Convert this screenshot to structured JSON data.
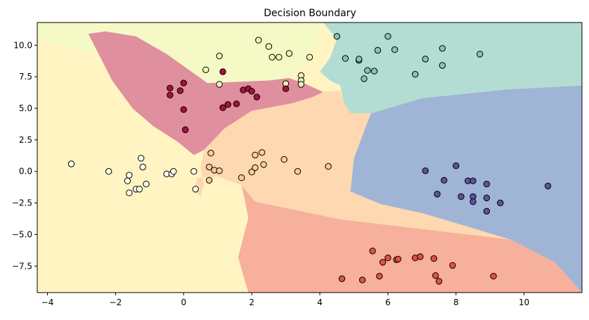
{
  "chart_data": {
    "type": "scatter",
    "title": "Decision Boundary",
    "xlabel": "",
    "ylabel": "",
    "xlim": [
      -4.3,
      11.7
    ],
    "ylim": [
      -9.6,
      11.8
    ],
    "xticks": [
      -4,
      -2,
      0,
      2,
      4,
      6,
      8,
      10
    ],
    "yticks": [
      10.0,
      7.5,
      5.0,
      2.5,
      0.0,
      -2.5,
      -5.0,
      -7.5
    ],
    "ytick_labels": [
      "10.0",
      "7.5",
      "5.0",
      "2.5",
      "0.0",
      "−2.5",
      "−5.0",
      "−7.5"
    ],
    "xtick_labels": [
      "−4",
      "−2",
      "0",
      "2",
      "4",
      "6",
      "8",
      "10"
    ],
    "grid": false,
    "legend": false,
    "regions": [
      {
        "class": 0,
        "color": "#fff4c2",
        "polygon": [
          [
            -4.3,
            11.8
          ],
          [
            11.7,
            11.8
          ],
          [
            11.7,
            -9.6
          ],
          [
            -4.3,
            -9.6
          ]
        ]
      },
      {
        "class": 1,
        "color": "#f5f9c6",
        "polygon": [
          [
            -4.3,
            11.8
          ],
          [
            4.1,
            11.8
          ],
          [
            4.0,
            10.5
          ],
          [
            3.6,
            8.7
          ],
          [
            3.1,
            7.4
          ],
          [
            2.5,
            7.2
          ],
          [
            0.5,
            7.0
          ],
          [
            -3.2,
            9.7
          ],
          [
            -4.3,
            10.5
          ]
        ]
      },
      {
        "class": 2,
        "color": "#b3ddd3",
        "polygon": [
          [
            4.1,
            11.8
          ],
          [
            11.7,
            11.8
          ],
          [
            11.7,
            6.8
          ],
          [
            9.5,
            6.5
          ],
          [
            7.0,
            5.8
          ],
          [
            5.5,
            4.6
          ],
          [
            4.9,
            4.6
          ],
          [
            4.7,
            5.5
          ],
          [
            4.6,
            6.8
          ],
          [
            4.3,
            7.2
          ],
          [
            4.0,
            7.9
          ],
          [
            4.3,
            9.0
          ],
          [
            4.5,
            10.5
          ]
        ]
      },
      {
        "class": 3,
        "color": "#e08f9e",
        "polygon": [
          [
            -2.8,
            10.9
          ],
          [
            -2.3,
            11.1
          ],
          [
            -1.4,
            10.7
          ],
          [
            -0.5,
            9.3
          ],
          [
            0.7,
            7.0
          ],
          [
            2.5,
            7.2
          ],
          [
            3.1,
            7.4
          ],
          [
            3.6,
            6.9
          ],
          [
            4.1,
            6.3
          ],
          [
            3.8,
            5.9
          ],
          [
            3.2,
            5.4
          ],
          [
            2.8,
            5.2
          ],
          [
            2.0,
            4.8
          ],
          [
            1.2,
            3.4
          ],
          [
            0.6,
            1.7
          ],
          [
            0.3,
            1.3
          ],
          [
            -0.2,
            2.4
          ],
          [
            -0.9,
            3.6
          ],
          [
            -1.5,
            5.0
          ],
          [
            -2.1,
            7.2
          ]
        ]
      },
      {
        "class": 4,
        "color": "#fed8b0",
        "polygon": [
          [
            0.6,
            1.7
          ],
          [
            1.2,
            3.4
          ],
          [
            2.0,
            4.8
          ],
          [
            2.8,
            5.2
          ],
          [
            3.2,
            5.4
          ],
          [
            3.8,
            5.9
          ],
          [
            4.1,
            6.3
          ],
          [
            4.6,
            6.4
          ],
          [
            4.7,
            5.5
          ],
          [
            4.9,
            4.6
          ],
          [
            5.5,
            4.6
          ],
          [
            5.3,
            3.2
          ],
          [
            5.0,
            1.0
          ],
          [
            4.9,
            -1.6
          ],
          [
            5.8,
            -2.6
          ],
          [
            7.0,
            -3.3
          ],
          [
            8.5,
            -4.5
          ],
          [
            9.6,
            -5.4
          ],
          [
            4.6,
            -3.8
          ],
          [
            2.1,
            -2.4
          ],
          [
            1.7,
            -1.1
          ],
          [
            1.0,
            -0.4
          ],
          [
            0.4,
            -0.5
          ],
          [
            0.3,
            -1.5
          ],
          [
            0.5,
            -2.0
          ],
          [
            0.6,
            -1.0
          ],
          [
            0.5,
            0.3
          ]
        ]
      },
      {
        "class": 5,
        "color": "#a0b4d6",
        "polygon": [
          [
            11.7,
            6.8
          ],
          [
            9.5,
            6.5
          ],
          [
            7.0,
            5.8
          ],
          [
            5.5,
            4.6
          ],
          [
            5.3,
            3.2
          ],
          [
            5.0,
            1.0
          ],
          [
            4.9,
            -1.6
          ],
          [
            5.8,
            -2.6
          ],
          [
            7.0,
            -3.3
          ],
          [
            8.5,
            -4.5
          ],
          [
            9.6,
            -5.4
          ],
          [
            10.9,
            -7.2
          ],
          [
            11.7,
            -9.6
          ]
        ]
      },
      {
        "class": 6,
        "color": "#f6b09c",
        "polygon": [
          [
            1.7,
            -1.1
          ],
          [
            2.1,
            -2.4
          ],
          [
            4.6,
            -3.8
          ],
          [
            9.6,
            -5.4
          ],
          [
            10.9,
            -7.2
          ],
          [
            11.7,
            -9.6
          ],
          [
            1.9,
            -9.6
          ],
          [
            1.6,
            -6.8
          ],
          [
            1.9,
            -3.7
          ],
          [
            1.8,
            -2.3
          ]
        ]
      }
    ],
    "series": [
      {
        "class": 0,
        "color": "#fffeee",
        "points": [
          [
            -3.3,
            0.6
          ],
          [
            -2.2,
            0.0
          ],
          [
            -1.6,
            -0.3
          ],
          [
            -1.65,
            -0.75
          ],
          [
            -1.6,
            -1.7
          ],
          [
            -1.4,
            -1.4
          ],
          [
            -1.3,
            -1.4
          ],
          [
            -1.25,
            1.05
          ],
          [
            -1.2,
            0.35
          ],
          [
            -1.1,
            -1.0
          ],
          [
            -0.5,
            -0.2
          ],
          [
            -0.35,
            -0.2
          ],
          [
            -0.3,
            0.0
          ],
          [
            0.3,
            0.0
          ],
          [
            0.35,
            -1.4
          ]
        ]
      },
      {
        "class": 1,
        "color": "#eaf6b5",
        "points": [
          [
            0.65,
            8.05
          ],
          [
            1.05,
            9.15
          ],
          [
            1.05,
            6.9
          ],
          [
            2.2,
            10.4
          ],
          [
            2.5,
            9.9
          ],
          [
            2.6,
            9.05
          ],
          [
            2.8,
            9.05
          ],
          [
            3.1,
            9.35
          ],
          [
            3.45,
            7.6
          ],
          [
            3.45,
            7.2
          ],
          [
            3.45,
            6.9
          ],
          [
            3.7,
            9.05
          ],
          [
            3.0,
            6.95
          ]
        ]
      },
      {
        "class": 2,
        "color": "#7fc7b4",
        "points": [
          [
            4.5,
            10.7
          ],
          [
            4.75,
            8.95
          ],
          [
            5.15,
            8.8
          ],
          [
            5.15,
            8.9
          ],
          [
            5.3,
            7.35
          ],
          [
            5.4,
            8.0
          ],
          [
            5.6,
            7.95
          ],
          [
            5.7,
            9.6
          ],
          [
            6.0,
            10.7
          ],
          [
            6.2,
            9.65
          ],
          [
            6.8,
            7.7
          ],
          [
            7.1,
            8.9
          ],
          [
            7.6,
            9.75
          ],
          [
            7.6,
            8.4
          ],
          [
            8.7,
            9.3
          ]
        ]
      },
      {
        "class": 3,
        "color": "#a8113a",
        "points": [
          [
            -0.4,
            6.6
          ],
          [
            -0.4,
            6.05
          ],
          [
            -0.1,
            6.4
          ],
          [
            0.0,
            7.0
          ],
          [
            0.0,
            4.9
          ],
          [
            0.05,
            3.3
          ],
          [
            1.15,
            7.9
          ],
          [
            1.15,
            5.05
          ],
          [
            1.3,
            5.3
          ],
          [
            1.55,
            5.35
          ],
          [
            1.75,
            6.45
          ],
          [
            1.9,
            6.55
          ],
          [
            2.0,
            6.35
          ],
          [
            2.15,
            5.9
          ],
          [
            3.0,
            6.55
          ]
        ]
      },
      {
        "class": 4,
        "color": "#fdcb97",
        "points": [
          [
            0.75,
            -0.7
          ],
          [
            0.75,
            0.35
          ],
          [
            0.8,
            1.45
          ],
          [
            0.9,
            0.1
          ],
          [
            1.05,
            0.05
          ],
          [
            1.7,
            -0.5
          ],
          [
            2.0,
            -0.05
          ],
          [
            2.1,
            1.3
          ],
          [
            2.1,
            0.3
          ],
          [
            2.3,
            1.5
          ],
          [
            2.35,
            0.55
          ],
          [
            2.95,
            0.95
          ],
          [
            3.35,
            0.0
          ],
          [
            4.25,
            0.4
          ]
        ]
      },
      {
        "class": 5,
        "color": "#5e50a1",
        "points": [
          [
            7.1,
            0.05
          ],
          [
            7.45,
            -1.8
          ],
          [
            7.65,
            -0.7
          ],
          [
            8.0,
            0.45
          ],
          [
            8.15,
            -2.0
          ],
          [
            8.35,
            -0.75
          ],
          [
            8.5,
            -0.75
          ],
          [
            8.5,
            -2.0
          ],
          [
            8.5,
            -2.4
          ],
          [
            8.9,
            -1.0
          ],
          [
            8.9,
            -2.1
          ],
          [
            8.9,
            -3.15
          ],
          [
            9.3,
            -2.5
          ],
          [
            10.7,
            -1.15
          ]
        ]
      },
      {
        "class": 6,
        "color": "#e4513c",
        "points": [
          [
            4.65,
            -8.5
          ],
          [
            5.25,
            -8.6
          ],
          [
            5.55,
            -6.3
          ],
          [
            5.75,
            -8.3
          ],
          [
            5.85,
            -7.2
          ],
          [
            6.0,
            -6.85
          ],
          [
            6.25,
            -7.0
          ],
          [
            6.3,
            -6.95
          ],
          [
            6.8,
            -6.85
          ],
          [
            6.95,
            -6.75
          ],
          [
            7.35,
            -6.9
          ],
          [
            7.4,
            -8.25
          ],
          [
            7.5,
            -8.7
          ],
          [
            7.9,
            -7.45
          ],
          [
            9.1,
            -8.3
          ]
        ]
      }
    ]
  }
}
